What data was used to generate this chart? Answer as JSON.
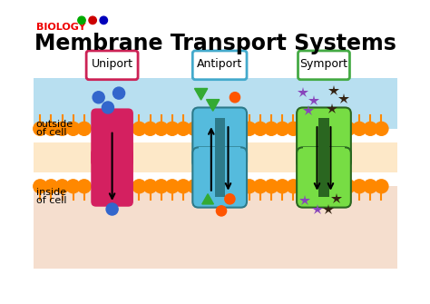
{
  "title": "Membrane Transport Systems",
  "subtitle": "BIOLOGY",
  "subtitle_dots": [
    "#00aa00",
    "#cc0000",
    "#0000bb"
  ],
  "labels": [
    "Uniport",
    "Antiport",
    "Symport"
  ],
  "label_border_colors": [
    "#cc2255",
    "#44aacc",
    "#44aa44"
  ],
  "bg_color": "#ffffff",
  "outside_bg_top": "#b8dff0",
  "outside_bg_bot": "#e0f2f8",
  "inside_bg": "#f5dece",
  "membrane_head_color": "#ff8800",
  "membrane_tail_color": "#fde8c8",
  "uniport_color": "#d42060",
  "antiport_outer_color": "#55bbdd",
  "antiport_inner_color": "#2d7a8a",
  "symport_outer_color": "#77dd44",
  "symport_inner_color": "#2a6620",
  "blue_molecule": "#3366cc",
  "green_molecule": "#33aa33",
  "orange_molecule": "#ff5500",
  "purple_molecule": "#8844bb",
  "dark_molecule": "#332211",
  "outside_label": "outside",
  "outside_label2": "of cell",
  "inside_label": "inside",
  "inside_label2": "of cell",
  "fig_width": 4.74,
  "fig_height": 3.35,
  "dpi": 100
}
